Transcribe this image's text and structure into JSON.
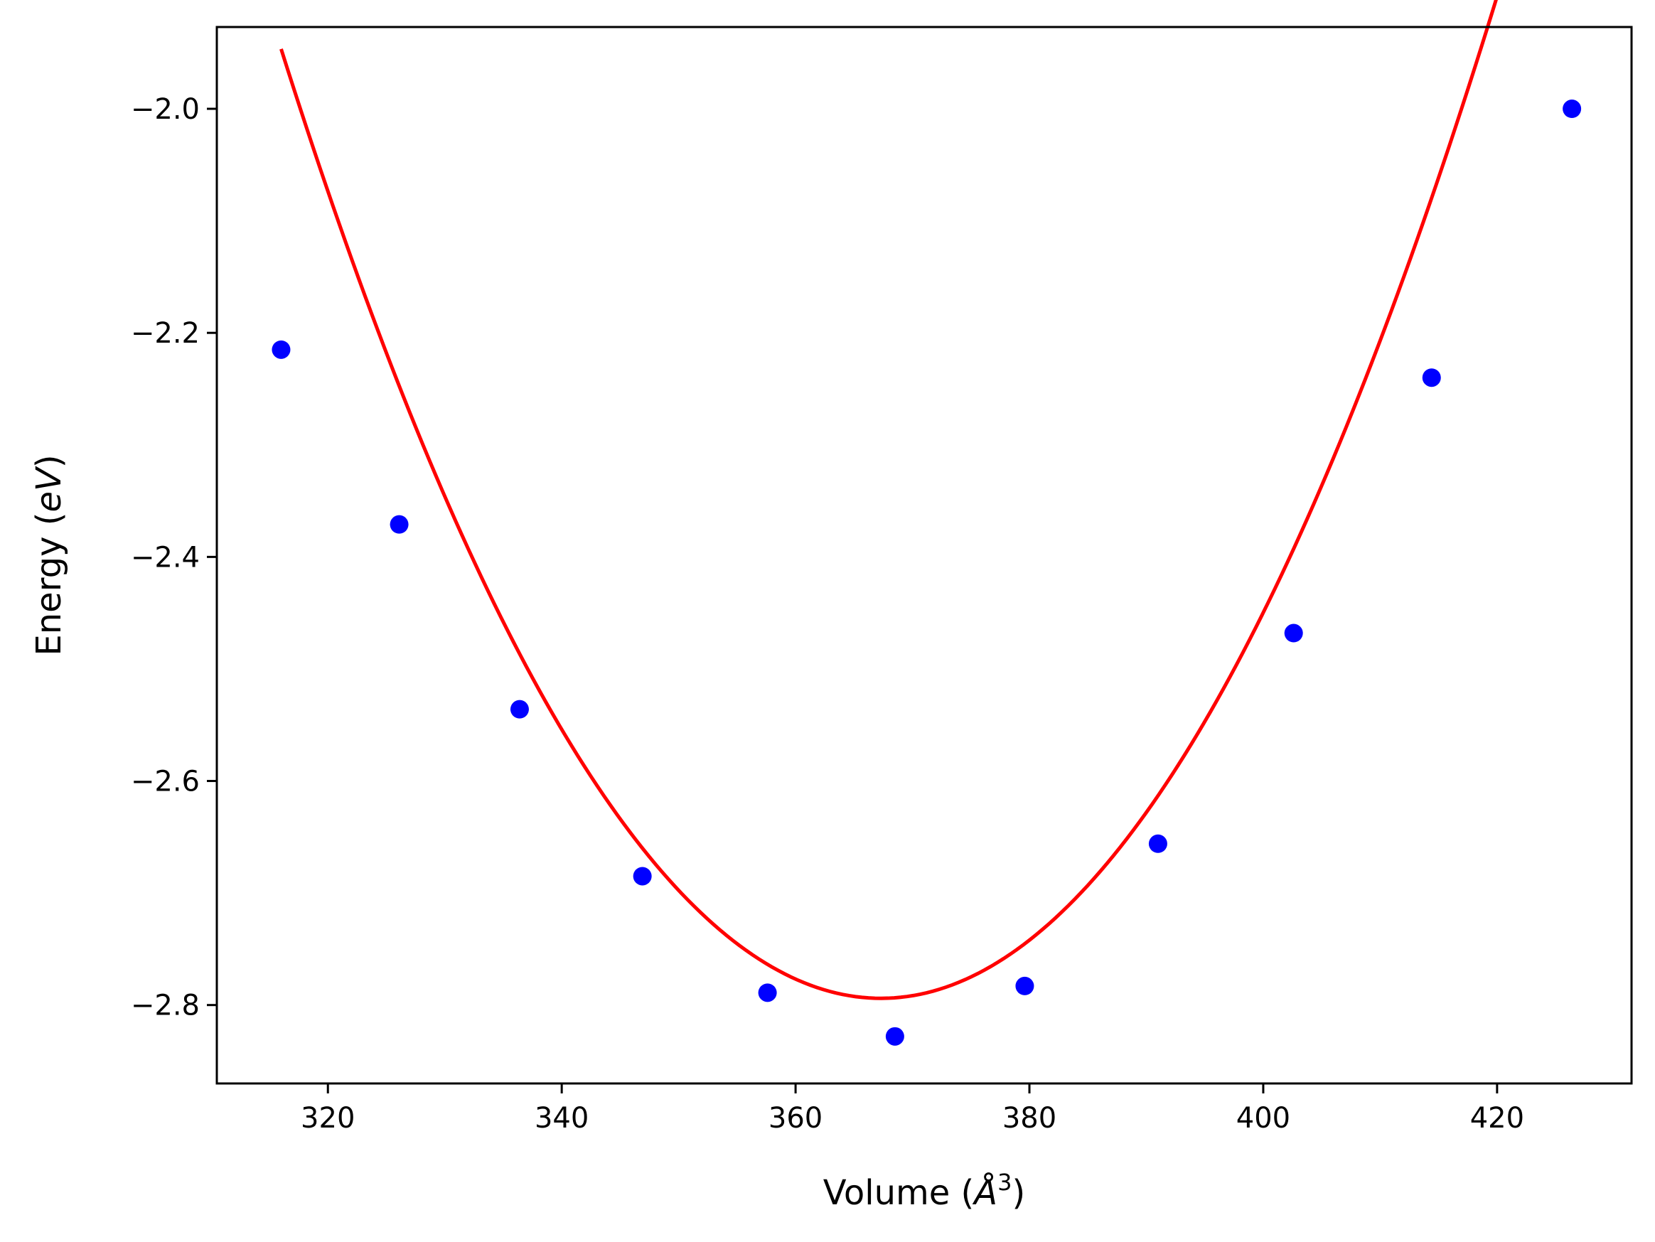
{
  "chart_data": {
    "type": "scatter",
    "title": "",
    "xlabel": {
      "prefix": "Volume (",
      "unit": "Å",
      "power": "3",
      "suffix": ")"
    },
    "ylabel": {
      "prefix": "Energy (",
      "unit": "eV",
      "suffix": ")"
    },
    "xlim": [
      310.5,
      431.5
    ],
    "ylim": [
      -2.87,
      -1.927
    ],
    "xticks": [
      320,
      340,
      360,
      380,
      400,
      420
    ],
    "xtick_labels": [
      "320",
      "340",
      "360",
      "380",
      "400",
      "420"
    ],
    "yticks": [
      -2.0,
      -2.2,
      -2.4,
      -2.6,
      -2.8
    ],
    "ytick_labels": [
      "−2.0",
      "−2.2",
      "−2.4",
      "−2.6",
      "−2.8"
    ],
    "grid": false,
    "series": [
      {
        "name": "data",
        "kind": "scatter",
        "color": "#0000ff",
        "x": [
          316.0,
          326.1,
          336.4,
          346.9,
          357.6,
          368.5,
          379.6,
          391.0,
          402.6,
          414.4,
          426.4
        ],
        "y": [
          -2.215,
          -2.371,
          -2.536,
          -2.685,
          -2.789,
          -2.828,
          -2.783,
          -2.656,
          -2.468,
          -2.24,
          -2.0
        ]
      },
      {
        "name": "fit",
        "kind": "line",
        "color": "#ff0000",
        "equation": "a*(V-V0)^2 + E0",
        "params": {
          "a": 0.000322,
          "V0": 367.3,
          "E0": -2.794
        },
        "x_range": [
          316.0,
          426.4
        ]
      }
    ]
  }
}
